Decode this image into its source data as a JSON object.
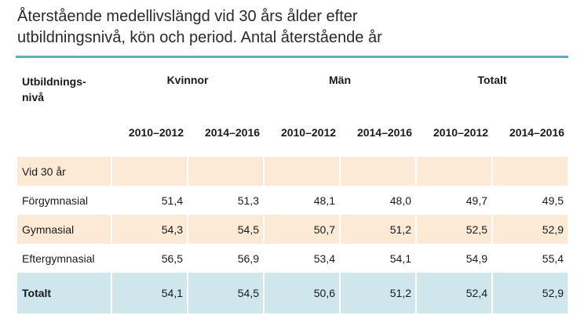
{
  "title_line1": "Återstående medellivslängd vid 30 års ålder efter",
  "title_line2": "utbildningsnivå, kön och period. Antal återstående år",
  "header": {
    "row_label_line1": "Utbildnings-",
    "row_label_line2": "nivå",
    "groups": [
      "Kvinnor",
      "Män",
      "Totalt"
    ],
    "periods": [
      "2010–2012",
      "2014–2016",
      "2010–2012",
      "2014–2016",
      "2010–2012",
      "2014–2016"
    ]
  },
  "rows": [
    {
      "label": "Vid 30 år",
      "values": [
        "",
        "",
        "",
        "",
        "",
        ""
      ]
    },
    {
      "label": "Förgymnasial",
      "values": [
        "51,4",
        "51,3",
        "48,1",
        "48,0",
        "49,7",
        "49,5"
      ]
    },
    {
      "label": "Gymnasial",
      "values": [
        "54,3",
        "54,5",
        "50,7",
        "51,2",
        "52,5",
        "52,9"
      ]
    },
    {
      "label": "Eftergymnasial",
      "values": [
        "56,5",
        "56,9",
        "53,4",
        "54,1",
        "54,9",
        "55,4"
      ]
    },
    {
      "label": "Totalt",
      "values": [
        "54,1",
        "54,5",
        "50,6",
        "51,2",
        "52,4",
        "52,9"
      ]
    }
  ],
  "colors": {
    "accent_rule": "#5fb0b7",
    "peach_row": "#fce9d6",
    "total_row": "#cfe6ec"
  }
}
